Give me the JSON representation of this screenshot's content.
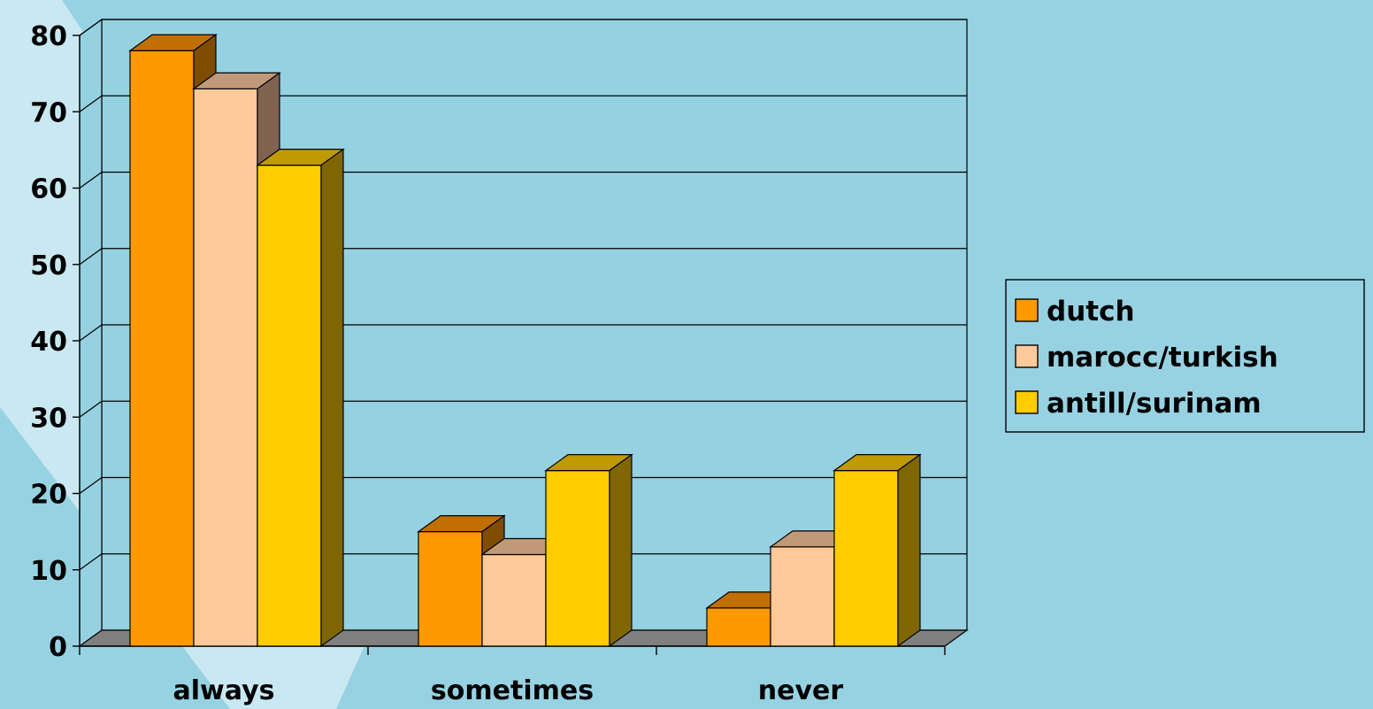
{
  "chart_data": {
    "type": "bar",
    "categories": [
      "always",
      "sometimes",
      "never"
    ],
    "series": [
      {
        "name": "dutch",
        "values": [
          78,
          15,
          5
        ],
        "color": "#ff9900",
        "side": "#7f4c00",
        "top": "#c06f00"
      },
      {
        "name": "marocc/turkish",
        "values": [
          73,
          12,
          13
        ],
        "color": "#ffc999",
        "side": "#806450",
        "top": "#c09a78"
      },
      {
        "name": "antill/surinam",
        "values": [
          63,
          23,
          23
        ],
        "color": "#ffcc00",
        "side": "#7f6600",
        "top": "#bf9a00"
      }
    ],
    "ylim": [
      0,
      80
    ],
    "yticks": [
      0,
      10,
      20,
      30,
      40,
      50,
      60,
      70,
      80
    ],
    "grid": true,
    "legend_position": "right",
    "background": "#97d2e2",
    "wall_color": "#96d1e1",
    "floor_color": "#808080"
  }
}
